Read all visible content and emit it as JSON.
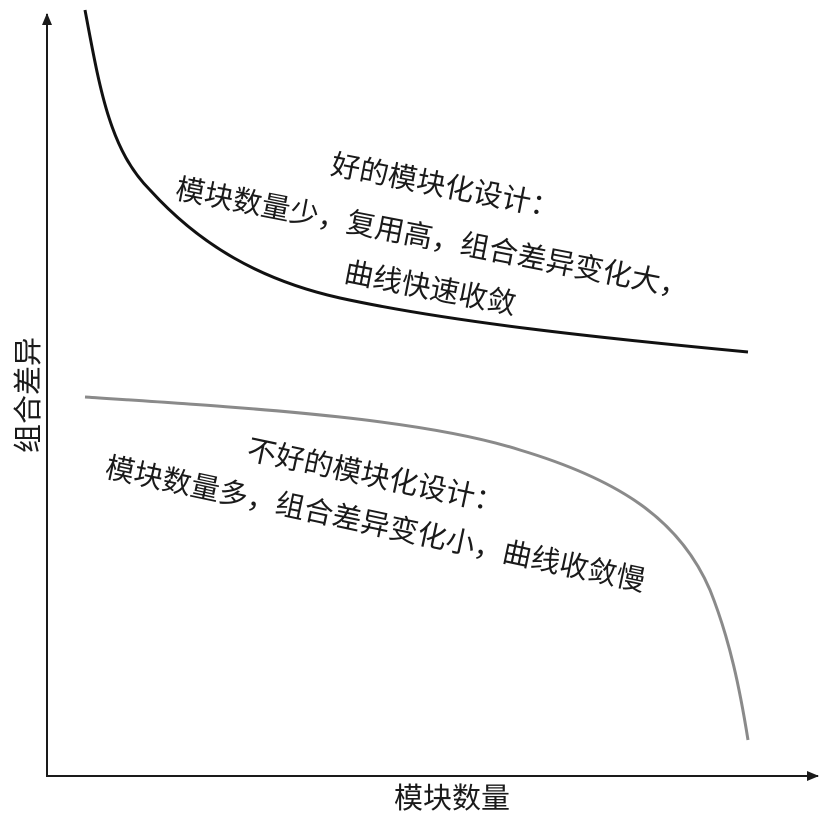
{
  "axes": {
    "y_label": "组合差异",
    "x_label": "模块数量"
  },
  "annotations": [
    {
      "lines": [
        "好的模块化设计：",
        "模块数量少，复用高，组合差异变化大，",
        "曲线快速收敛"
      ]
    },
    {
      "lines": [
        "不好的模块化设计：",
        "模块数量多，组合差异变化小，曲线收敛慢"
      ]
    }
  ]
}
